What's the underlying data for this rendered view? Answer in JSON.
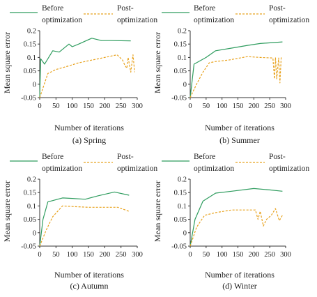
{
  "chart_data": [
    {
      "type": "line",
      "caption": "(a) Spring",
      "xlabel": "Number of iterations",
      "ylabel": "Mean square error",
      "xlim": [
        0,
        300
      ],
      "ylim": [
        -0.05,
        0.2
      ],
      "xticks": [
        "0",
        "50",
        "100",
        "150",
        "200",
        "250",
        "300"
      ],
      "yticks": [
        "-0.05",
        "0",
        "0.05",
        "0.1",
        "0.15",
        "0.2"
      ],
      "colors": {
        "before": "#2e9c5e",
        "post": "#e8a21d"
      },
      "legend": {
        "before": [
          "Before",
          "optimization"
        ],
        "post": [
          "Post-",
          "optimization"
        ]
      },
      "series": [
        {
          "name": "Before optimization",
          "key": "before",
          "x": [
            0,
            3,
            15,
            40,
            60,
            90,
            100,
            120,
            160,
            190,
            220,
            280
          ],
          "y": [
            -0.05,
            0.095,
            0.075,
            0.125,
            0.12,
            0.15,
            0.14,
            0.15,
            0.172,
            0.163,
            0.163,
            0.162
          ]
        },
        {
          "name": "Post-optimization",
          "key": "post",
          "x": [
            0,
            25,
            50,
            80,
            120,
            160,
            200,
            238,
            255,
            262,
            268,
            272,
            280,
            287,
            292
          ],
          "y": [
            -0.05,
            0.04,
            0.055,
            0.065,
            0.08,
            0.09,
            0.1,
            0.11,
            0.09,
            0.07,
            0.06,
            0.1,
            0.045,
            0.11,
            0.045
          ]
        }
      ]
    },
    {
      "type": "line",
      "caption": "(b) Summer",
      "xlabel": "Number of iterations",
      "ylabel": "Mean square error",
      "xlim": [
        0,
        300
      ],
      "ylim": [
        -0.05,
        0.2
      ],
      "xticks": [
        "0",
        "50",
        "100",
        "150",
        "200",
        "250",
        "300"
      ],
      "yticks": [
        "-0.05",
        "0",
        "0.05",
        "0.1",
        "0.15",
        "0.2"
      ],
      "colors": {
        "before": "#2e9c5e",
        "post": "#e8a21d"
      },
      "legend": {
        "before": [
          "Before",
          "optimization"
        ],
        "post": [
          "Post-",
          "optimization"
        ]
      },
      "series": [
        {
          "name": "Before optimization",
          "key": "before",
          "x": [
            0,
            12,
            50,
            80,
            130,
            180,
            220,
            290
          ],
          "y": [
            -0.05,
            0.075,
            0.1,
            0.125,
            0.135,
            0.145,
            0.152,
            0.158
          ]
        },
        {
          "name": "Post-optimization",
          "key": "post",
          "x": [
            0,
            20,
            40,
            60,
            80,
            120,
            180,
            220,
            260,
            265,
            268,
            272,
            278,
            282,
            286
          ],
          "y": [
            -0.05,
            0.0,
            0.045,
            0.08,
            0.085,
            0.09,
            0.103,
            0.1,
            0.098,
            0.02,
            0.1,
            0.02,
            0.098,
            0.005,
            0.1
          ]
        }
      ]
    },
    {
      "type": "line",
      "caption": "(c) Autumn",
      "xlabel": "Number of iterations",
      "ylabel": "Mean square error",
      "xlim": [
        0,
        300
      ],
      "ylim": [
        -0.05,
        0.2
      ],
      "xticks": [
        "0",
        "50",
        "100",
        "150",
        "200",
        "250",
        "300"
      ],
      "yticks": [
        "-0.05",
        "0",
        "0.05",
        "0.1",
        "0.15",
        "0.2"
      ],
      "colors": {
        "before": "#2e9c5e",
        "post": "#e8a21d"
      },
      "legend": {
        "before": [
          "Before",
          "optimization"
        ],
        "post": [
          "Post-",
          "optimization"
        ]
      },
      "series": [
        {
          "name": "Before optimization",
          "key": "before",
          "x": [
            0,
            10,
            25,
            40,
            70,
            100,
            140,
            180,
            230,
            275
          ],
          "y": [
            -0.05,
            0.05,
            0.115,
            0.12,
            0.13,
            0.128,
            0.125,
            0.138,
            0.152,
            0.14
          ]
        },
        {
          "name": "Post-optimization",
          "key": "post",
          "x": [
            0,
            20,
            40,
            70,
            100,
            150,
            200,
            240,
            275
          ],
          "y": [
            -0.05,
            0.01,
            0.06,
            0.1,
            0.098,
            0.095,
            0.095,
            0.095,
            0.08
          ]
        }
      ]
    },
    {
      "type": "line",
      "caption": "(d) Winter",
      "xlabel": "Number of iterations",
      "ylabel": "Mean square error",
      "xlim": [
        0,
        300
      ],
      "ylim": [
        -0.05,
        0.2
      ],
      "xticks": [
        "0",
        "50",
        "100",
        "150",
        "200",
        "250",
        "300"
      ],
      "yticks": [
        "-0.05",
        "0",
        "0.05",
        "0.1",
        "0.15",
        "0.2"
      ],
      "colors": {
        "before": "#2e9c5e",
        "post": "#e8a21d"
      },
      "legend": {
        "before": [
          "Before",
          "optimization"
        ],
        "post": [
          "Post-",
          "optimization"
        ]
      },
      "series": [
        {
          "name": "Before optimization",
          "key": "before",
          "x": [
            0,
            15,
            40,
            80,
            130,
            200,
            250,
            290
          ],
          "y": [
            -0.05,
            0.05,
            0.118,
            0.148,
            0.155,
            0.165,
            0.16,
            0.155
          ]
        },
        {
          "name": "Post-optimization",
          "key": "post",
          "x": [
            0,
            20,
            45,
            80,
            130,
            180,
            205,
            213,
            220,
            230,
            240,
            255,
            268,
            280,
            290
          ],
          "y": [
            -0.05,
            0.02,
            0.065,
            0.075,
            0.085,
            0.085,
            0.085,
            0.05,
            0.08,
            0.025,
            0.05,
            0.065,
            0.09,
            0.045,
            0.065
          ]
        }
      ]
    }
  ]
}
